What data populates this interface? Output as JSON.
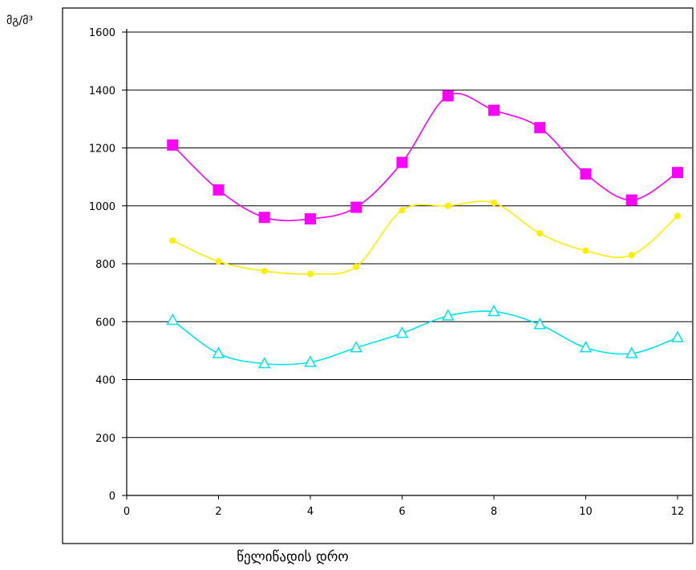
{
  "chart_data": {
    "type": "line",
    "title": "",
    "ylabel": "მგ/მ³",
    "xlabel": "წელიწადის დრო",
    "xlim": [
      0,
      12
    ],
    "ylim": [
      0,
      1600
    ],
    "x_ticks": [
      "0",
      "2",
      "4",
      "6",
      "8",
      "10",
      "12"
    ],
    "y_ticks": [
      "0",
      "200",
      "400",
      "600",
      "800",
      "1000",
      "1200",
      "1400",
      "1600"
    ],
    "grid": "horizontal",
    "legend": "none",
    "series": [
      {
        "marker": "square",
        "color": "#ff00ff",
        "x": [
          1,
          2,
          3,
          4,
          5,
          6,
          7,
          8,
          9,
          10,
          11,
          12
        ],
        "values": [
          1210,
          1055,
          960,
          955,
          995,
          1150,
          1380,
          1330,
          1270,
          1110,
          1020,
          1115
        ]
      },
      {
        "marker": "circle",
        "color": "#ffee00",
        "x": [
          1,
          2,
          3,
          4,
          5,
          6,
          7,
          8,
          9,
          10,
          11,
          12
        ],
        "values": [
          880,
          808,
          775,
          765,
          790,
          985,
          1000,
          1010,
          905,
          845,
          830,
          965
        ]
      },
      {
        "marker": "triangle",
        "color": "#00e5ee",
        "x": [
          1,
          2,
          3,
          4,
          5,
          6,
          7,
          8,
          9,
          10,
          11,
          12
        ],
        "values": [
          605,
          490,
          455,
          460,
          510,
          560,
          620,
          635,
          590,
          510,
          490,
          545
        ]
      }
    ]
  }
}
